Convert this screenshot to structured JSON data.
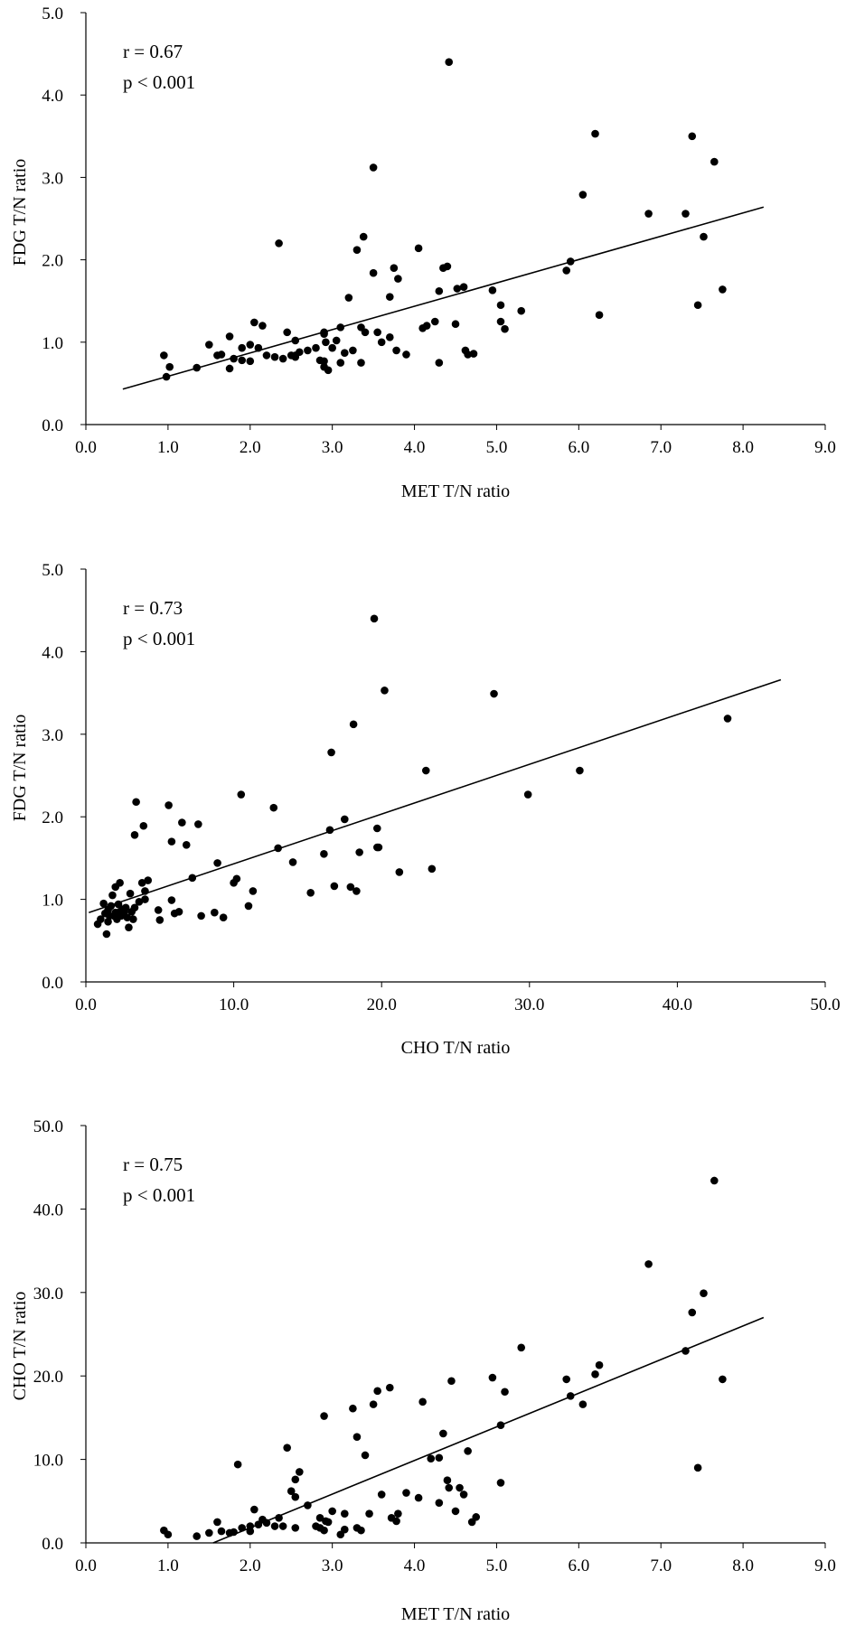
{
  "chart_data": [
    {
      "type": "scatter",
      "xlabel": "MET T/N ratio",
      "ylabel": "FDG T/N ratio",
      "xlim": [
        0,
        9
      ],
      "ylim": [
        0,
        5
      ],
      "x_ticks": [
        "0.0",
        "1.0",
        "2.0",
        "3.0",
        "4.0",
        "5.0",
        "6.0",
        "7.0",
        "8.0",
        "9.0"
      ],
      "y_ticks": [
        "0.0",
        "1.0",
        "2.0",
        "3.0",
        "4.0",
        "5.0"
      ],
      "annotations": [
        "r = 0.67",
        "p < 0.001"
      ],
      "trendline": {
        "x": [
          0.45,
          8.25
        ],
        "y": [
          0.43,
          2.64
        ]
      },
      "points": [
        [
          0.95,
          0.84
        ],
        [
          0.98,
          0.58
        ],
        [
          1.02,
          0.7
        ],
        [
          1.35,
          0.69
        ],
        [
          1.5,
          0.97
        ],
        [
          1.6,
          0.84
        ],
        [
          1.65,
          0.85
        ],
        [
          1.75,
          1.07
        ],
        [
          1.75,
          0.68
        ],
        [
          1.8,
          0.8
        ],
        [
          1.9,
          0.78
        ],
        [
          1.9,
          0.93
        ],
        [
          2.0,
          0.77
        ],
        [
          2.0,
          0.97
        ],
        [
          2.05,
          1.24
        ],
        [
          2.1,
          0.93
        ],
        [
          2.15,
          1.2
        ],
        [
          2.2,
          0.84
        ],
        [
          2.3,
          0.82
        ],
        [
          2.35,
          2.2
        ],
        [
          2.4,
          0.8
        ],
        [
          2.45,
          1.12
        ],
        [
          2.5,
          0.84
        ],
        [
          2.55,
          0.84
        ],
        [
          2.55,
          0.82
        ],
        [
          2.55,
          1.02
        ],
        [
          2.6,
          0.88
        ],
        [
          2.7,
          0.9
        ],
        [
          2.8,
          0.93
        ],
        [
          2.85,
          0.78
        ],
        [
          2.9,
          0.77
        ],
        [
          2.9,
          0.7
        ],
        [
          2.9,
          1.1
        ],
        [
          2.9,
          1.12
        ],
        [
          2.92,
          1.0
        ],
        [
          2.95,
          0.66
        ],
        [
          3.0,
          0.93
        ],
        [
          3.05,
          1.02
        ],
        [
          3.1,
          0.75
        ],
        [
          3.1,
          1.18
        ],
        [
          3.15,
          0.87
        ],
        [
          3.2,
          1.54
        ],
        [
          3.25,
          0.9
        ],
        [
          3.3,
          2.12
        ],
        [
          3.35,
          0.75
        ],
        [
          3.35,
          1.18
        ],
        [
          3.38,
          2.28
        ],
        [
          3.4,
          1.12
        ],
        [
          3.5,
          1.84
        ],
        [
          3.5,
          3.12
        ],
        [
          3.55,
          1.12
        ],
        [
          3.6,
          1.0
        ],
        [
          3.7,
          1.55
        ],
        [
          3.7,
          1.06
        ],
        [
          3.75,
          1.9
        ],
        [
          3.78,
          0.9
        ],
        [
          3.8,
          1.77
        ],
        [
          3.9,
          0.85
        ],
        [
          4.05,
          2.14
        ],
        [
          4.1,
          1.17
        ],
        [
          4.15,
          1.2
        ],
        [
          4.25,
          1.25
        ],
        [
          4.3,
          0.75
        ],
        [
          4.3,
          1.62
        ],
        [
          4.35,
          1.9
        ],
        [
          4.4,
          1.92
        ],
        [
          4.42,
          4.4
        ],
        [
          4.5,
          1.22
        ],
        [
          4.52,
          1.65
        ],
        [
          4.6,
          1.67
        ],
        [
          4.62,
          0.9
        ],
        [
          4.65,
          0.85
        ],
        [
          4.72,
          0.86
        ],
        [
          4.95,
          1.63
        ],
        [
          5.05,
          1.25
        ],
        [
          5.05,
          1.45
        ],
        [
          5.1,
          1.16
        ],
        [
          5.3,
          1.38
        ],
        [
          5.85,
          1.87
        ],
        [
          5.9,
          1.98
        ],
        [
          6.05,
          2.79
        ],
        [
          6.2,
          3.53
        ],
        [
          6.25,
          1.33
        ],
        [
          6.85,
          2.56
        ],
        [
          7.3,
          2.56
        ],
        [
          7.38,
          3.5
        ],
        [
          7.45,
          1.45
        ],
        [
          7.52,
          2.28
        ],
        [
          7.65,
          3.19
        ],
        [
          7.75,
          1.64
        ]
      ]
    },
    {
      "type": "scatter",
      "xlabel": "CHO T/N ratio",
      "ylabel": "FDG T/N ratio",
      "xlim": [
        0,
        50
      ],
      "ylim": [
        0,
        5
      ],
      "x_ticks": [
        "0.0",
        "10.0",
        "20.0",
        "30.0",
        "40.0",
        "50.0"
      ],
      "y_ticks": [
        "0.0",
        "1.0",
        "2.0",
        "3.0",
        "4.0",
        "5.0"
      ],
      "annotations": [
        "r = 0.73",
        "p < 0.001"
      ],
      "trendline": {
        "x": [
          0.2,
          47.0
        ],
        "y": [
          0.84,
          3.66
        ]
      },
      "points": [
        [
          0.8,
          0.7
        ],
        [
          1.0,
          0.76
        ],
        [
          1.2,
          0.95
        ],
        [
          1.3,
          0.83
        ],
        [
          1.4,
          0.58
        ],
        [
          1.5,
          0.87
        ],
        [
          1.5,
          0.73
        ],
        [
          1.6,
          0.8
        ],
        [
          1.7,
          0.92
        ],
        [
          1.8,
          1.05
        ],
        [
          1.9,
          0.8
        ],
        [
          2.0,
          1.15
        ],
        [
          2.0,
          0.84
        ],
        [
          2.1,
          0.76
        ],
        [
          2.2,
          0.94
        ],
        [
          2.3,
          1.2
        ],
        [
          2.3,
          0.85
        ],
        [
          2.4,
          0.8
        ],
        [
          2.5,
          0.88
        ],
        [
          2.6,
          0.85
        ],
        [
          2.7,
          0.9
        ],
        [
          2.8,
          0.78
        ],
        [
          2.9,
          0.66
        ],
        [
          3.0,
          1.07
        ],
        [
          3.1,
          0.85
        ],
        [
          3.2,
          0.76
        ],
        [
          3.3,
          0.9
        ],
        [
          3.3,
          1.78
        ],
        [
          3.4,
          2.18
        ],
        [
          3.6,
          0.97
        ],
        [
          3.8,
          1.2
        ],
        [
          3.9,
          1.89
        ],
        [
          4.0,
          1.0
        ],
        [
          4.0,
          1.1
        ],
        [
          4.2,
          1.23
        ],
        [
          4.9,
          0.87
        ],
        [
          5.0,
          0.75
        ],
        [
          5.6,
          2.14
        ],
        [
          5.8,
          1.7
        ],
        [
          5.8,
          0.99
        ],
        [
          6.0,
          0.83
        ],
        [
          6.3,
          0.85
        ],
        [
          6.5,
          1.93
        ],
        [
          6.8,
          1.66
        ],
        [
          7.2,
          1.26
        ],
        [
          7.6,
          1.91
        ],
        [
          7.8,
          0.8
        ],
        [
          8.7,
          0.84
        ],
        [
          8.9,
          1.44
        ],
        [
          9.3,
          0.78
        ],
        [
          10.0,
          1.2
        ],
        [
          10.2,
          1.25
        ],
        [
          10.5,
          2.27
        ],
        [
          11.0,
          0.92
        ],
        [
          11.3,
          1.1
        ],
        [
          12.7,
          2.11
        ],
        [
          13.0,
          1.62
        ],
        [
          14.0,
          1.45
        ],
        [
          15.2,
          1.08
        ],
        [
          16.1,
          1.55
        ],
        [
          16.5,
          1.84
        ],
        [
          16.6,
          2.78
        ],
        [
          16.8,
          1.16
        ],
        [
          17.5,
          1.97
        ],
        [
          17.9,
          1.15
        ],
        [
          18.1,
          3.12
        ],
        [
          18.3,
          1.1
        ],
        [
          18.5,
          1.57
        ],
        [
          19.5,
          4.4
        ],
        [
          19.7,
          1.86
        ],
        [
          19.7,
          1.63
        ],
        [
          19.8,
          1.63
        ],
        [
          20.2,
          3.53
        ],
        [
          21.2,
          1.33
        ],
        [
          23.0,
          2.56
        ],
        [
          23.4,
          1.37
        ],
        [
          27.6,
          3.49
        ],
        [
          29.9,
          2.27
        ],
        [
          33.4,
          2.56
        ],
        [
          43.4,
          3.19
        ]
      ]
    },
    {
      "type": "scatter",
      "xlabel": "MET T/N ratio",
      "ylabel": "CHO T/N ratio",
      "xlim": [
        0,
        9
      ],
      "ylim": [
        0,
        50
      ],
      "x_ticks": [
        "0.0",
        "1.0",
        "2.0",
        "3.0",
        "4.0",
        "5.0",
        "6.0",
        "7.0",
        "8.0",
        "9.0"
      ],
      "y_ticks": [
        "0.0",
        "10.0",
        "20.0",
        "30.0",
        "40.0",
        "50.0"
      ],
      "annotations": [
        "r = 0.75",
        "p < 0.001"
      ],
      "trendline": {
        "x": [
          1.55,
          8.25
        ],
        "y": [
          0.0,
          27.0
        ]
      },
      "points": [
        [
          0.95,
          1.5
        ],
        [
          1.0,
          1.0
        ],
        [
          1.35,
          0.8
        ],
        [
          1.5,
          1.2
        ],
        [
          1.6,
          2.5
        ],
        [
          1.65,
          1.4
        ],
        [
          1.75,
          1.2
        ],
        [
          1.8,
          1.3
        ],
        [
          1.85,
          9.4
        ],
        [
          1.9,
          1.8
        ],
        [
          2.0,
          2.0
        ],
        [
          2.0,
          1.4
        ],
        [
          2.05,
          4.0
        ],
        [
          2.1,
          2.2
        ],
        [
          2.15,
          2.8
        ],
        [
          2.2,
          2.4
        ],
        [
          2.3,
          2.0
        ],
        [
          2.35,
          3.0
        ],
        [
          2.4,
          2.0
        ],
        [
          2.45,
          11.4
        ],
        [
          2.5,
          6.2
        ],
        [
          2.55,
          5.5
        ],
        [
          2.55,
          7.6
        ],
        [
          2.55,
          1.8
        ],
        [
          2.6,
          8.5
        ],
        [
          2.7,
          4.5
        ],
        [
          2.8,
          2.0
        ],
        [
          2.85,
          1.8
        ],
        [
          2.85,
          3.0
        ],
        [
          2.9,
          1.5
        ],
        [
          2.9,
          15.2
        ],
        [
          2.92,
          2.6
        ],
        [
          2.95,
          2.5
        ],
        [
          3.0,
          3.8
        ],
        [
          3.1,
          1.0
        ],
        [
          3.15,
          1.6
        ],
        [
          3.15,
          3.5
        ],
        [
          3.25,
          16.1
        ],
        [
          3.3,
          1.8
        ],
        [
          3.3,
          12.7
        ],
        [
          3.35,
          1.5
        ],
        [
          3.4,
          10.5
        ],
        [
          3.45,
          3.5
        ],
        [
          3.5,
          16.6
        ],
        [
          3.55,
          18.2
        ],
        [
          3.6,
          5.8
        ],
        [
          3.7,
          18.6
        ],
        [
          3.72,
          3.0
        ],
        [
          3.78,
          2.6
        ],
        [
          3.8,
          3.5
        ],
        [
          3.9,
          6.0
        ],
        [
          4.05,
          5.4
        ],
        [
          4.1,
          16.9
        ],
        [
          4.2,
          10.1
        ],
        [
          4.3,
          10.2
        ],
        [
          4.3,
          4.8
        ],
        [
          4.35,
          13.1
        ],
        [
          4.4,
          7.5
        ],
        [
          4.42,
          6.6
        ],
        [
          4.45,
          19.4
        ],
        [
          4.5,
          3.8
        ],
        [
          4.55,
          6.6
        ],
        [
          4.6,
          5.8
        ],
        [
          4.65,
          11.0
        ],
        [
          4.7,
          2.5
        ],
        [
          4.75,
          3.1
        ],
        [
          4.95,
          19.8
        ],
        [
          5.05,
          7.2
        ],
        [
          5.05,
          14.1
        ],
        [
          5.1,
          18.1
        ],
        [
          5.3,
          23.4
        ],
        [
          5.85,
          19.6
        ],
        [
          5.9,
          17.6
        ],
        [
          6.05,
          16.6
        ],
        [
          6.2,
          20.2
        ],
        [
          6.25,
          21.3
        ],
        [
          6.85,
          33.4
        ],
        [
          7.3,
          23.0
        ],
        [
          7.38,
          27.6
        ],
        [
          7.45,
          9.0
        ],
        [
          7.52,
          29.9
        ],
        [
          7.65,
          43.4
        ],
        [
          7.75,
          19.6
        ]
      ]
    }
  ]
}
